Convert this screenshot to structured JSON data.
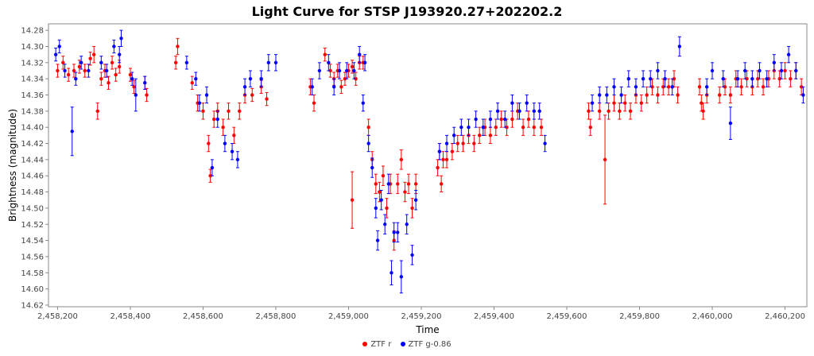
{
  "chart_data": {
    "type": "scatter",
    "title": "Light Curve for STSP J193920.27+202202.2",
    "xlabel": "Time",
    "ylabel": "Brightness (magnitude)",
    "xlim": [
      2458175,
      2460260
    ],
    "ylim": [
      14.622,
      14.272
    ],
    "y_inverted": true,
    "error_bars": true,
    "grid": false,
    "legend_position": "bottom-center",
    "x_ticks": [
      2458200,
      2458400,
      2458600,
      2458800,
      2459000,
      2459200,
      2459400,
      2459600,
      2459800,
      2460000,
      2460200
    ],
    "x_tick_labels": [
      "2,458,200",
      "2,458,400",
      "2,458,600",
      "2,458,800",
      "2,459,000",
      "2,459,200",
      "2,459,400",
      "2,459,600",
      "2,459,800",
      "2,460,000",
      "2,460,200"
    ],
    "y_ticks": [
      14.28,
      14.3,
      14.32,
      14.34,
      14.36,
      14.38,
      14.4,
      14.42,
      14.44,
      14.46,
      14.48,
      14.5,
      14.52,
      14.54,
      14.56,
      14.58,
      14.6,
      14.62
    ],
    "y_tick_labels": [
      "14.28",
      "14.30",
      "14.32",
      "14.34",
      "14.36",
      "14.38",
      "14.40",
      "14.42",
      "14.44",
      "14.46",
      "14.48",
      "14.50",
      "14.52",
      "14.54",
      "14.56",
      "14.58",
      "14.60",
      "14.62"
    ],
    "series": [
      {
        "name": "ZTF r",
        "color": "#ff0000",
        "points": [
          [
            2458200,
            14.33,
            0.008
          ],
          [
            2458215,
            14.32,
            0.008
          ],
          [
            2458230,
            14.335,
            0.008
          ],
          [
            2458245,
            14.33,
            0.008
          ],
          [
            2458260,
            14.325,
            0.008
          ],
          [
            2458275,
            14.33,
            0.008
          ],
          [
            2458290,
            14.315,
            0.008
          ],
          [
            2458300,
            14.31,
            0.01
          ],
          [
            2458310,
            14.38,
            0.01
          ],
          [
            2458320,
            14.34,
            0.008
          ],
          [
            2458330,
            14.33,
            0.008
          ],
          [
            2458340,
            14.345,
            0.008
          ],
          [
            2458350,
            14.32,
            0.008
          ],
          [
            2458360,
            14.335,
            0.008
          ],
          [
            2458370,
            14.325,
            0.008
          ],
          [
            2458400,
            14.335,
            0.008
          ],
          [
            2458410,
            14.35,
            0.008
          ],
          [
            2458440,
            14.345,
            0.008
          ],
          [
            2458445,
            14.36,
            0.008
          ],
          [
            2458525,
            14.32,
            0.008
          ],
          [
            2458530,
            14.3,
            0.01
          ],
          [
            2458570,
            14.345,
            0.008
          ],
          [
            2458585,
            14.37,
            0.01
          ],
          [
            2458600,
            14.38,
            0.01
          ],
          [
            2458615,
            14.42,
            0.01
          ],
          [
            2458620,
            14.46,
            0.008
          ],
          [
            2458630,
            14.39,
            0.01
          ],
          [
            2458640,
            14.38,
            0.01
          ],
          [
            2458655,
            14.4,
            0.01
          ],
          [
            2458670,
            14.38,
            0.01
          ],
          [
            2458685,
            14.41,
            0.01
          ],
          [
            2458700,
            14.38,
            0.01
          ],
          [
            2458715,
            14.36,
            0.01
          ],
          [
            2458735,
            14.36,
            0.008
          ],
          [
            2458760,
            14.35,
            0.008
          ],
          [
            2458775,
            14.365,
            0.008
          ],
          [
            2458895,
            14.35,
            0.01
          ],
          [
            2458905,
            14.37,
            0.01
          ],
          [
            2458935,
            14.31,
            0.008
          ],
          [
            2458950,
            14.33,
            0.008
          ],
          [
            2458960,
            14.34,
            0.008
          ],
          [
            2458970,
            14.33,
            0.008
          ],
          [
            2458980,
            14.35,
            0.008
          ],
          [
            2458990,
            14.34,
            0.008
          ],
          [
            2459000,
            14.33,
            0.008
          ],
          [
            2459010,
            14.325,
            0.008
          ],
          [
            2459020,
            14.34,
            0.008
          ],
          [
            2459030,
            14.32,
            0.008
          ],
          [
            2459040,
            14.32,
            0.008
          ],
          [
            2459010,
            14.49,
            0.035
          ],
          [
            2459055,
            14.4,
            0.01
          ],
          [
            2459065,
            14.44,
            0.01
          ],
          [
            2459075,
            14.47,
            0.012
          ],
          [
            2459085,
            14.48,
            0.012
          ],
          [
            2459095,
            14.46,
            0.012
          ],
          [
            2459105,
            14.5,
            0.012
          ],
          [
            2459115,
            14.47,
            0.012
          ],
          [
            2459125,
            14.54,
            0.012
          ],
          [
            2459135,
            14.47,
            0.012
          ],
          [
            2459145,
            14.44,
            0.012
          ],
          [
            2459155,
            14.48,
            0.012
          ],
          [
            2459165,
            14.47,
            0.012
          ],
          [
            2459175,
            14.5,
            0.012
          ],
          [
            2459185,
            14.47,
            0.012
          ],
          [
            2459245,
            14.45,
            0.01
          ],
          [
            2459250,
            14.43,
            0.01
          ],
          [
            2459255,
            14.47,
            0.01
          ],
          [
            2459260,
            14.44,
            0.01
          ],
          [
            2459270,
            14.44,
            0.01
          ],
          [
            2459285,
            14.43,
            0.01
          ],
          [
            2459300,
            14.42,
            0.01
          ],
          [
            2459315,
            14.42,
            0.01
          ],
          [
            2459330,
            14.41,
            0.01
          ],
          [
            2459345,
            14.42,
            0.01
          ],
          [
            2459360,
            14.41,
            0.01
          ],
          [
            2459375,
            14.4,
            0.01
          ],
          [
            2459390,
            14.41,
            0.01
          ],
          [
            2459405,
            14.4,
            0.01
          ],
          [
            2459420,
            14.39,
            0.01
          ],
          [
            2459435,
            14.4,
            0.01
          ],
          [
            2459450,
            14.39,
            0.01
          ],
          [
            2459465,
            14.38,
            0.01
          ],
          [
            2459480,
            14.4,
            0.01
          ],
          [
            2459495,
            14.39,
            0.01
          ],
          [
            2459510,
            14.4,
            0.01
          ],
          [
            2459530,
            14.4,
            0.01
          ],
          [
            2459660,
            14.38,
            0.01
          ],
          [
            2459665,
            14.4,
            0.01
          ],
          [
            2459690,
            14.38,
            0.01
          ],
          [
            2459705,
            14.44,
            0.055
          ],
          [
            2459715,
            14.38,
            0.01
          ],
          [
            2459730,
            14.37,
            0.01
          ],
          [
            2459745,
            14.38,
            0.01
          ],
          [
            2459760,
            14.37,
            0.01
          ],
          [
            2459775,
            14.38,
            0.01
          ],
          [
            2459790,
            14.36,
            0.01
          ],
          [
            2459805,
            14.37,
            0.01
          ],
          [
            2459820,
            14.36,
            0.01
          ],
          [
            2459835,
            14.35,
            0.01
          ],
          [
            2459850,
            14.36,
            0.01
          ],
          [
            2459865,
            14.35,
            0.01
          ],
          [
            2459880,
            14.35,
            0.01
          ],
          [
            2459895,
            14.34,
            0.01
          ],
          [
            2459905,
            14.36,
            0.01
          ],
          [
            2459965,
            14.35,
            0.01
          ],
          [
            2459970,
            14.37,
            0.01
          ],
          [
            2459975,
            14.38,
            0.01
          ],
          [
            2459985,
            14.36,
            0.01
          ],
          [
            2460020,
            14.36,
            0.01
          ],
          [
            2460035,
            14.35,
            0.01
          ],
          [
            2460050,
            14.36,
            0.01
          ],
          [
            2460065,
            14.34,
            0.01
          ],
          [
            2460080,
            14.35,
            0.01
          ],
          [
            2460095,
            14.34,
            0.01
          ],
          [
            2460110,
            14.35,
            0.01
          ],
          [
            2460125,
            14.34,
            0.01
          ],
          [
            2460140,
            14.35,
            0.01
          ],
          [
            2460155,
            14.34,
            0.01
          ],
          [
            2460170,
            14.33,
            0.01
          ],
          [
            2460185,
            14.34,
            0.01
          ],
          [
            2460200,
            14.33,
            0.01
          ],
          [
            2460215,
            14.34,
            0.01
          ],
          [
            2460230,
            14.33,
            0.01
          ],
          [
            2460245,
            14.35,
            0.01
          ]
        ]
      },
      {
        "name": "ZTF g-0.86",
        "color": "#0000ff",
        "points": [
          [
            2458195,
            14.31,
            0.008
          ],
          [
            2458205,
            14.3,
            0.008
          ],
          [
            2458220,
            14.33,
            0.008
          ],
          [
            2458240,
            14.405,
            0.03
          ],
          [
            2458250,
            14.34,
            0.008
          ],
          [
            2458265,
            14.32,
            0.008
          ],
          [
            2458285,
            14.33,
            0.008
          ],
          [
            2458320,
            14.32,
            0.008
          ],
          [
            2458335,
            14.33,
            0.008
          ],
          [
            2458355,
            14.3,
            0.008
          ],
          [
            2458370,
            14.31,
            0.01
          ],
          [
            2458375,
            14.29,
            0.01
          ],
          [
            2458405,
            14.34,
            0.008
          ],
          [
            2458415,
            14.36,
            0.02
          ],
          [
            2458440,
            14.345,
            0.008
          ],
          [
            2458555,
            14.32,
            0.008
          ],
          [
            2458580,
            14.34,
            0.008
          ],
          [
            2458590,
            14.37,
            0.01
          ],
          [
            2458610,
            14.36,
            0.01
          ],
          [
            2458625,
            14.45,
            0.01
          ],
          [
            2458640,
            14.39,
            0.01
          ],
          [
            2458660,
            14.42,
            0.01
          ],
          [
            2458680,
            14.43,
            0.01
          ],
          [
            2458695,
            14.44,
            0.01
          ],
          [
            2458715,
            14.35,
            0.01
          ],
          [
            2458730,
            14.34,
            0.01
          ],
          [
            2458760,
            14.34,
            0.01
          ],
          [
            2458780,
            14.32,
            0.01
          ],
          [
            2458800,
            14.32,
            0.01
          ],
          [
            2458900,
            14.35,
            0.01
          ],
          [
            2458920,
            14.33,
            0.01
          ],
          [
            2458945,
            14.32,
            0.01
          ],
          [
            2458960,
            14.35,
            0.01
          ],
          [
            2458975,
            14.33,
            0.01
          ],
          [
            2458995,
            14.33,
            0.01
          ],
          [
            2459015,
            14.33,
            0.01
          ],
          [
            2459030,
            14.31,
            0.01
          ],
          [
            2459045,
            14.32,
            0.01
          ],
          [
            2459040,
            14.37,
            0.01
          ],
          [
            2459055,
            14.42,
            0.01
          ],
          [
            2459065,
            14.45,
            0.012
          ],
          [
            2459075,
            14.5,
            0.012
          ],
          [
            2459080,
            14.54,
            0.012
          ],
          [
            2459090,
            14.49,
            0.012
          ],
          [
            2459100,
            14.52,
            0.012
          ],
          [
            2459110,
            14.47,
            0.012
          ],
          [
            2459118,
            14.58,
            0.015
          ],
          [
            2459125,
            14.53,
            0.012
          ],
          [
            2459135,
            14.53,
            0.012
          ],
          [
            2459145,
            14.585,
            0.02
          ],
          [
            2459160,
            14.52,
            0.012
          ],
          [
            2459175,
            14.558,
            0.012
          ],
          [
            2459185,
            14.49,
            0.012
          ],
          [
            2459250,
            14.43,
            0.01
          ],
          [
            2459270,
            14.42,
            0.01
          ],
          [
            2459290,
            14.41,
            0.01
          ],
          [
            2459310,
            14.4,
            0.01
          ],
          [
            2459330,
            14.4,
            0.01
          ],
          [
            2459350,
            14.39,
            0.01
          ],
          [
            2459370,
            14.4,
            0.01
          ],
          [
            2459390,
            14.39,
            0.01
          ],
          [
            2459410,
            14.38,
            0.01
          ],
          [
            2459430,
            14.39,
            0.01
          ],
          [
            2459450,
            14.37,
            0.01
          ],
          [
            2459470,
            14.38,
            0.01
          ],
          [
            2459490,
            14.37,
            0.01
          ],
          [
            2459510,
            14.38,
            0.01
          ],
          [
            2459525,
            14.38,
            0.01
          ],
          [
            2459540,
            14.42,
            0.01
          ],
          [
            2459670,
            14.37,
            0.01
          ],
          [
            2459690,
            14.36,
            0.01
          ],
          [
            2459710,
            14.36,
            0.01
          ],
          [
            2459730,
            14.35,
            0.01
          ],
          [
            2459750,
            14.36,
            0.01
          ],
          [
            2459770,
            14.34,
            0.01
          ],
          [
            2459790,
            14.35,
            0.01
          ],
          [
            2459810,
            14.34,
            0.01
          ],
          [
            2459830,
            14.34,
            0.01
          ],
          [
            2459850,
            14.33,
            0.01
          ],
          [
            2459870,
            14.34,
            0.01
          ],
          [
            2459890,
            14.35,
            0.01
          ],
          [
            2459910,
            14.3,
            0.012
          ],
          [
            2459985,
            14.35,
            0.01
          ],
          [
            2460000,
            14.33,
            0.01
          ],
          [
            2460030,
            14.34,
            0.01
          ],
          [
            2460050,
            14.395,
            0.02
          ],
          [
            2460070,
            14.34,
            0.01
          ],
          [
            2460090,
            14.33,
            0.01
          ],
          [
            2460110,
            14.34,
            0.01
          ],
          [
            2460130,
            14.33,
            0.01
          ],
          [
            2460150,
            14.34,
            0.01
          ],
          [
            2460170,
            14.32,
            0.01
          ],
          [
            2460190,
            14.33,
            0.01
          ],
          [
            2460210,
            14.31,
            0.01
          ],
          [
            2460230,
            14.33,
            0.01
          ],
          [
            2460250,
            14.36,
            0.01
          ]
        ]
      }
    ]
  }
}
